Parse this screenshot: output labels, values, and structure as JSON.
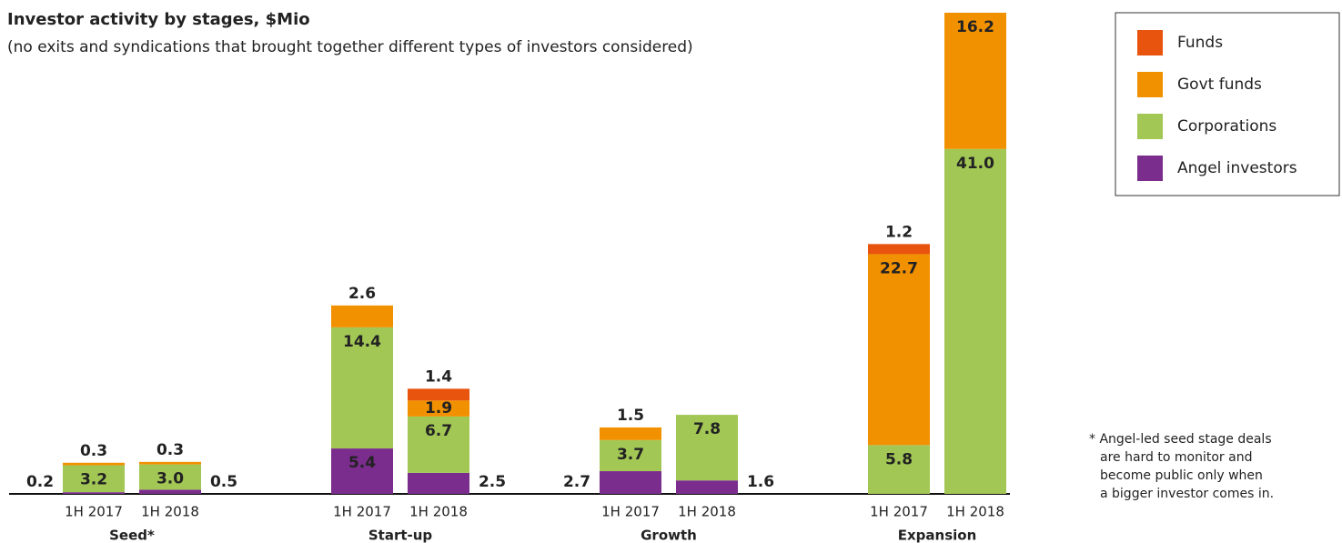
{
  "chart_data": {
    "type": "stacked_bar",
    "title": "Investor activity by stages, $Mio",
    "subtitle": "(no exits and syndications that brought together different types of investors considered)",
    "groups": [
      "Seed*",
      "Start-up",
      "Growth",
      "Expansion"
    ],
    "categories": [
      "1H 2017",
      "1H 2018",
      "1H 2017",
      "1H 2018",
      "1H 2017",
      "1H 2018",
      "1H 2017",
      "1H 2018"
    ],
    "series": [
      {
        "name": "Angel investors",
        "color": "#7b2d8e",
        "values": [
          0.2,
          0.5,
          5.4,
          2.5,
          2.7,
          1.6,
          null,
          null
        ],
        "value_labels": [
          "0.2",
          "0.5",
          "5.4",
          "2.5",
          "2.7",
          "1.6",
          null,
          null
        ]
      },
      {
        "name": "Corporations",
        "color": "#a2c755",
        "values": [
          3.2,
          3.0,
          14.4,
          6.7,
          3.7,
          7.8,
          5.8,
          41.0
        ],
        "value_labels": [
          "3.2",
          "3.0",
          "14.4",
          "6.7",
          "3.7",
          "7.8",
          "5.8",
          "41.0"
        ]
      },
      {
        "name": "Govt funds",
        "color": "#f29100",
        "values": [
          0.3,
          0.3,
          2.6,
          1.9,
          1.5,
          null,
          22.7,
          16.2
        ],
        "value_labels": [
          "0.3",
          "0.3",
          "2.6",
          "1.9",
          "1.5",
          null,
          "22.7",
          "16.2"
        ]
      },
      {
        "name": "Funds",
        "color": "#e8530e",
        "values": [
          null,
          null,
          null,
          1.4,
          null,
          null,
          1.2,
          null
        ],
        "value_labels": [
          null,
          null,
          null,
          "1.4",
          null,
          null,
          "1.2",
          null
        ]
      }
    ],
    "footnote": [
      "* Angel-led seed stage deals",
      "are hard to monitor and",
      "become public only when",
      "a bigger investor comes in."
    ]
  }
}
